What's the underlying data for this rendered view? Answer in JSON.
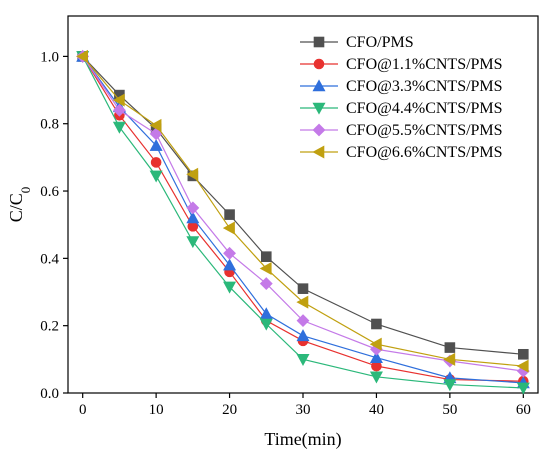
{
  "chart_data": {
    "type": "line",
    "xlabel": "Time(min)",
    "ylabel_main": "C/C",
    "ylabel_sub": "0",
    "xlim": [
      -2,
      62
    ],
    "ylim": [
      0,
      1.12
    ],
    "x_ticks": [
      0,
      10,
      20,
      30,
      40,
      50,
      60
    ],
    "y_ticks": [
      0.0,
      0.2,
      0.4,
      0.6,
      0.8,
      1.0
    ],
    "y_tick_labels": [
      "0.0",
      "0.2",
      "0.4",
      "0.6",
      "0.8",
      "1.0"
    ],
    "x": [
      0,
      5,
      10,
      15,
      20,
      25,
      30,
      40,
      50,
      60
    ],
    "legend_position": "top-right",
    "grid": false,
    "series": [
      {
        "name": "CFO/PMS",
        "color": "#505050",
        "marker": "square",
        "values": [
          1.0,
          0.885,
          0.785,
          0.645,
          0.53,
          0.405,
          0.31,
          0.205,
          0.135,
          0.115
        ]
      },
      {
        "name": "CFO@1.1%CNTS/PMS",
        "color": "#e8312f",
        "marker": "circle",
        "values": [
          1.0,
          0.825,
          0.685,
          0.495,
          0.36,
          0.215,
          0.155,
          0.08,
          0.04,
          0.035
        ]
      },
      {
        "name": "CFO@3.3%CNTS/PMS",
        "color": "#2f6fdc",
        "marker": "triangle-up",
        "values": [
          1.0,
          0.85,
          0.735,
          0.52,
          0.38,
          0.235,
          0.17,
          0.105,
          0.045,
          0.03
        ]
      },
      {
        "name": "CFO@4.4%CNTS/PMS",
        "color": "#2bb87a",
        "marker": "triangle-down",
        "values": [
          1.0,
          0.79,
          0.645,
          0.45,
          0.315,
          0.205,
          0.1,
          0.048,
          0.025,
          0.015
        ]
      },
      {
        "name": "CFO@5.5%CNTS/PMS",
        "color": "#c47ae8",
        "marker": "diamond",
        "values": [
          1.0,
          0.84,
          0.77,
          0.55,
          0.415,
          0.325,
          0.215,
          0.13,
          0.095,
          0.065
        ]
      },
      {
        "name": "CFO@6.6%CNTS/PMS",
        "color": "#c0a010",
        "marker": "triangle-left",
        "values": [
          1.0,
          0.87,
          0.795,
          0.65,
          0.49,
          0.37,
          0.27,
          0.145,
          0.1,
          0.08
        ]
      }
    ]
  }
}
